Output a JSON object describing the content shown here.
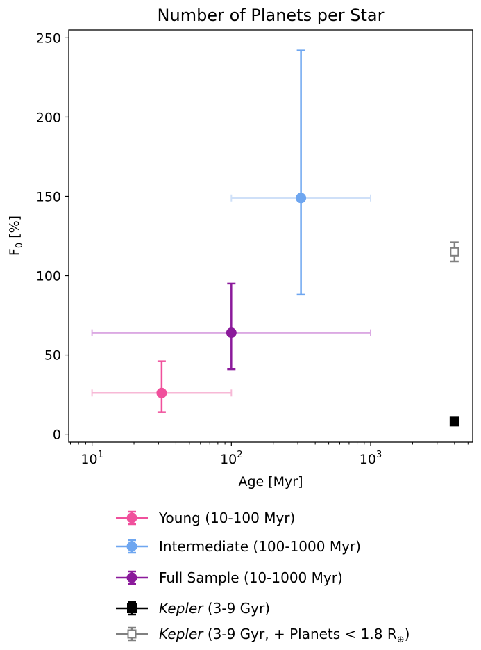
{
  "chart_data": {
    "type": "scatter",
    "title": "Number of Planets per Star",
    "xlabel": "Age [Myr]",
    "ylabel": "F",
    "ylabel_sub": "0",
    "ylabel_unit": " [%]",
    "x_scale": "log",
    "xlim": [
      6.8,
      5400
    ],
    "ylim": [
      -5,
      255
    ],
    "x_ticks": [
      {
        "value": 10,
        "base": "10",
        "exp": "1"
      },
      {
        "value": 100,
        "base": "10",
        "exp": "2"
      },
      {
        "value": 1000,
        "base": "10",
        "exp": "3"
      }
    ],
    "y_ticks": [
      {
        "value": 0,
        "label": "0"
      },
      {
        "value": 50,
        "label": "50"
      },
      {
        "value": 100,
        "label": "100"
      },
      {
        "value": 150,
        "label": "150"
      },
      {
        "value": 200,
        "label": "200"
      },
      {
        "value": 250,
        "label": "250"
      }
    ],
    "grid": false,
    "legend_position": "below",
    "series": [
      {
        "name": "Young (10-100 Myr)",
        "label_italic": "",
        "label_rest": "Young (10-100 Myr)",
        "color": "#f0509c",
        "xerr_color": "#f7b8d6",
        "marker": "circle",
        "points": [
          {
            "x": 31.6,
            "y": 26,
            "xlo": 10,
            "xhi": 100,
            "ylo": 14,
            "yhi": 46
          }
        ]
      },
      {
        "name": "Intermediate (100-1000 Myr)",
        "label_italic": "",
        "label_rest": "Intermediate (100-1000 Myr)",
        "color": "#6ea6f0",
        "xerr_color": "#cfe0f8",
        "marker": "circle",
        "points": [
          {
            "x": 316,
            "y": 149,
            "xlo": 100,
            "xhi": 1000,
            "ylo": 88,
            "yhi": 242
          }
        ]
      },
      {
        "name": "Full Sample (10-1000 Myr)",
        "label_italic": "",
        "label_rest": "Full Sample (10-1000 Myr)",
        "color": "#8b1a9b",
        "xerr_color": "#dba9e3",
        "marker": "circle",
        "points": [
          {
            "x": 100,
            "y": 64,
            "xlo": 10,
            "xhi": 1000,
            "ylo": 41,
            "yhi": 95
          }
        ]
      },
      {
        "name": "Kepler (3-9 Gyr)",
        "label_italic": "Kepler",
        "label_rest": " (3-9 Gyr)",
        "color": "#000000",
        "xerr_color": "#000000",
        "marker": "square-filled",
        "points": [
          {
            "x": 4000,
            "y": 8
          }
        ]
      },
      {
        "name": "Kepler (3-9 Gyr, + Planets < 1.8 R⊕)",
        "label_italic": "Kepler",
        "label_rest": " (3-9 Gyr, + Planets < 1.8 R",
        "label_sub": "⊕",
        "label_close": ")",
        "color": "#808080",
        "xerr_color": "#808080",
        "marker": "square-open",
        "points": [
          {
            "x": 4000,
            "y": 115,
            "ylo": 109,
            "yhi": 121
          }
        ]
      }
    ]
  }
}
